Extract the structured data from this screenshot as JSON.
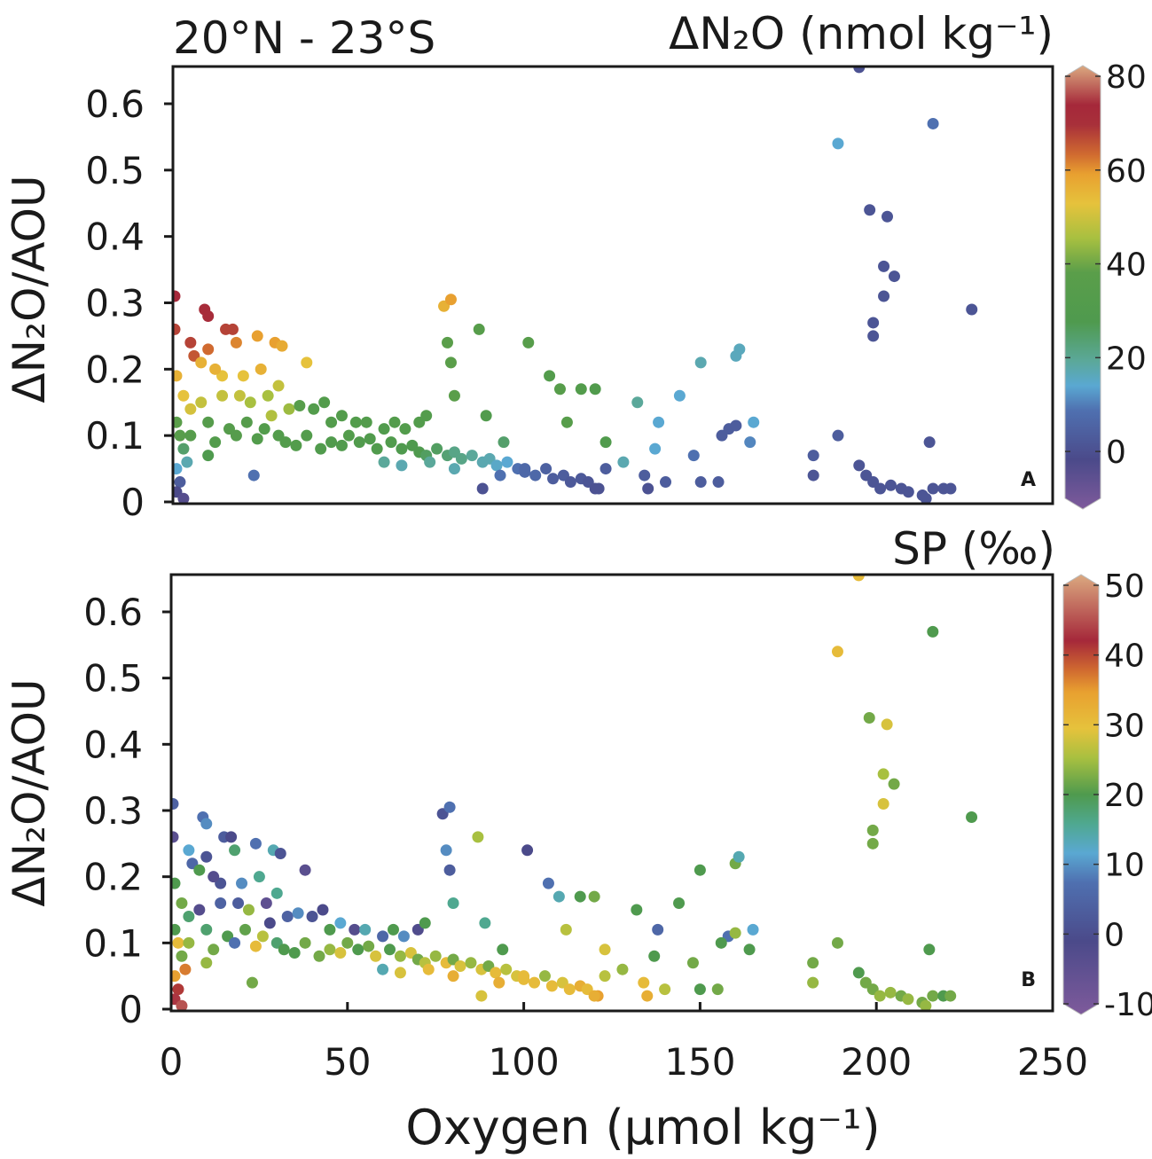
{
  "chart_data": [
    {
      "type": "scatter",
      "panel_letter": "A",
      "title": "20°N - 23°S",
      "colorbar_label": "ΔN₂O (nmol kg⁻¹)",
      "colorbar_ticks": [
        "80",
        "60",
        "40",
        "20",
        "0"
      ],
      "colorbar_tick_values": [
        80,
        60,
        40,
        20,
        0
      ],
      "colorbar_range": [
        -10,
        80
      ],
      "colorbar_stops": [
        [
          -10,
          "#7e5a9b"
        ],
        [
          0,
          "#4b4a8a"
        ],
        [
          10,
          "#4f70b0"
        ],
        [
          15,
          "#5aa8d2"
        ],
        [
          20,
          "#5ba89a"
        ],
        [
          28,
          "#4f9a4e"
        ],
        [
          38,
          "#5a9e4a"
        ],
        [
          45,
          "#a8c040"
        ],
        [
          52,
          "#e6c23c"
        ],
        [
          58,
          "#e8a030"
        ],
        [
          62,
          "#d06a30"
        ],
        [
          68,
          "#a8303a"
        ],
        [
          72,
          "#a5283a"
        ],
        [
          80,
          "#dba980"
        ]
      ],
      "color_field_index": 2,
      "ylabel": "ΔN₂O/AOU",
      "ylim": [
        0,
        0.66
      ],
      "yticks": [
        "0",
        "0.1",
        "0.2",
        "0.3",
        "0.4",
        "0.5",
        "0.6"
      ],
      "ytick_values": [
        0,
        0.1,
        0.2,
        0.3,
        0.4,
        0.5,
        0.6
      ],
      "xlim": [
        0,
        250
      ]
    },
    {
      "type": "scatter",
      "panel_letter": "B",
      "colorbar_label": "SP (‰)",
      "colorbar_ticks": [
        "50",
        "40",
        "30",
        "20",
        "10",
        "0",
        "-10"
      ],
      "colorbar_tick_values": [
        50,
        40,
        30,
        20,
        10,
        0,
        -10
      ],
      "colorbar_range": [
        -10,
        50
      ],
      "colorbar_stops": [
        [
          -10,
          "#7e5a9b"
        ],
        [
          0,
          "#4b4a8a"
        ],
        [
          8,
          "#4f70b0"
        ],
        [
          12,
          "#5aa8d2"
        ],
        [
          16,
          "#4fa890"
        ],
        [
          20,
          "#4f9a4e"
        ],
        [
          25,
          "#a8c040"
        ],
        [
          29,
          "#e6c23c"
        ],
        [
          34,
          "#e8a030"
        ],
        [
          37,
          "#d06a30"
        ],
        [
          41,
          "#a5283a"
        ],
        [
          50,
          "#dba980"
        ]
      ],
      "color_field_index": 3,
      "ylabel": "ΔN₂O/AOU",
      "ylim": [
        0,
        0.66
      ],
      "yticks": [
        "0",
        "0.1",
        "0.2",
        "0.3",
        "0.4",
        "0.5",
        "0.6"
      ],
      "ytick_values": [
        0,
        0.1,
        0.2,
        0.3,
        0.4,
        0.5,
        0.6
      ],
      "xlim": [
        0,
        250
      ],
      "xlabel": "Oxygen (μmol kg⁻¹)",
      "xticks": [
        "0",
        "50",
        "100",
        "150",
        "200",
        "250"
      ],
      "xtick_values": [
        0,
        50,
        100,
        150,
        200,
        250
      ]
    }
  ],
  "point_fields": [
    "oxygen",
    "dN2O_AOU",
    "dN2O",
    "SP"
  ],
  "points": [
    [
      0.5,
      0.31,
      72,
      5
    ],
    [
      0.5,
      0.26,
      66,
      -3
    ],
    [
      5,
      0.24,
      66,
      12
    ],
    [
      6,
      0.22,
      64,
      6
    ],
    [
      9,
      0.29,
      70,
      8
    ],
    [
      10,
      0.28,
      70,
      10
    ],
    [
      10,
      0.23,
      62,
      2
    ],
    [
      15,
      0.26,
      66,
      4
    ],
    [
      17,
      0.26,
      66,
      0
    ],
    [
      18,
      0.24,
      60,
      18
    ],
    [
      24,
      0.25,
      58,
      8
    ],
    [
      29,
      0.24,
      58,
      14
    ],
    [
      31,
      0.235,
      56,
      2
    ],
    [
      38,
      0.21,
      52,
      -3
    ],
    [
      25,
      0.2,
      55,
      16
    ],
    [
      20,
      0.19,
      52,
      10
    ],
    [
      14,
      0.19,
      52,
      2
    ],
    [
      12,
      0.2,
      55,
      -2
    ],
    [
      8,
      0.21,
      55,
      20
    ],
    [
      1,
      0.19,
      55,
      20
    ],
    [
      3,
      0.16,
      52,
      22
    ],
    [
      5,
      0.14,
      50,
      18
    ],
    [
      8,
      0.15,
      48,
      -2
    ],
    [
      14,
      0.16,
      48,
      5
    ],
    [
      19,
      0.16,
      48,
      4
    ],
    [
      22,
      0.15,
      45,
      24
    ],
    [
      27,
      0.16,
      45,
      -4
    ],
    [
      30,
      0.175,
      48,
      16
    ],
    [
      28,
      0.13,
      46,
      0
    ],
    [
      33,
      0.14,
      44,
      5
    ],
    [
      36,
      0.145,
      35,
      10
    ],
    [
      40,
      0.14,
      32,
      2
    ],
    [
      43,
      0.15,
      32,
      0
    ],
    [
      45,
      0.12,
      32,
      20
    ],
    [
      48,
      0.13,
      32,
      12
    ],
    [
      52,
      0.12,
      32,
      -2
    ],
    [
      55,
      0.12,
      32,
      14
    ],
    [
      60,
      0.11,
      30,
      6
    ],
    [
      63,
      0.12,
      32,
      20
    ],
    [
      66,
      0.11,
      32,
      10
    ],
    [
      70,
      0.12,
      32,
      -1
    ],
    [
      72,
      0.13,
      32,
      20
    ],
    [
      1,
      0.12,
      38,
      20
    ],
    [
      2,
      0.1,
      36,
      30
    ],
    [
      3,
      0.08,
      25,
      22
    ],
    [
      4,
      0.06,
      18,
      36
    ],
    [
      1,
      0.05,
      15,
      34
    ],
    [
      2,
      0.03,
      5,
      40
    ],
    [
      1,
      0.015,
      0,
      42
    ],
    [
      3,
      0.005,
      -2,
      44
    ],
    [
      5,
      0.1,
      34,
      24
    ],
    [
      10,
      0.12,
      34,
      18
    ],
    [
      12,
      0.09,
      32,
      22
    ],
    [
      16,
      0.11,
      34,
      20
    ],
    [
      18,
      0.1,
      34,
      8
    ],
    [
      21,
      0.12,
      34,
      21
    ],
    [
      24,
      0.095,
      32,
      30
    ],
    [
      26,
      0.11,
      32,
      26
    ],
    [
      30,
      0.1,
      32,
      18
    ],
    [
      32,
      0.09,
      32,
      20
    ],
    [
      35,
      0.085,
      32,
      20
    ],
    [
      38,
      0.1,
      32,
      22
    ],
    [
      42,
      0.08,
      30,
      22
    ],
    [
      45,
      0.09,
      30,
      24
    ],
    [
      48,
      0.085,
      30,
      28
    ],
    [
      50,
      0.1,
      32,
      22
    ],
    [
      53,
      0.09,
      30,
      20
    ],
    [
      56,
      0.095,
      30,
      22
    ],
    [
      58,
      0.08,
      30,
      28
    ],
    [
      62,
      0.09,
      30,
      20
    ],
    [
      65,
      0.08,
      28,
      24
    ],
    [
      68,
      0.085,
      28,
      28
    ],
    [
      70,
      0.075,
      28,
      22
    ],
    [
      72,
      0.07,
      26,
      26
    ],
    [
      75,
      0.08,
      26,
      24
    ],
    [
      78,
      0.07,
      24,
      30
    ],
    [
      80,
      0.075,
      22,
      22
    ],
    [
      82,
      0.065,
      22,
      28
    ],
    [
      85,
      0.07,
      20,
      24
    ],
    [
      88,
      0.06,
      18,
      28
    ],
    [
      90,
      0.065,
      18,
      22
    ],
    [
      92,
      0.055,
      16,
      30
    ],
    [
      95,
      0.06,
      15,
      26
    ],
    [
      98,
      0.05,
      10,
      28
    ],
    [
      100,
      0.045,
      8,
      30
    ],
    [
      103,
      0.04,
      8,
      30
    ],
    [
      106,
      0.05,
      6,
      24
    ],
    [
      108,
      0.035,
      5,
      30
    ],
    [
      111,
      0.04,
      5,
      28
    ],
    [
      113,
      0.03,
      4,
      30
    ],
    [
      116,
      0.035,
      4,
      32
    ],
    [
      118,
      0.03,
      3,
      30
    ],
    [
      121,
      0.02,
      2,
      34
    ],
    [
      60,
      0.06,
      20,
      14
    ],
    [
      65,
      0.055,
      18,
      28
    ],
    [
      73,
      0.06,
      20,
      30
    ],
    [
      80,
      0.05,
      18,
      32
    ],
    [
      88,
      0.02,
      2,
      28
    ],
    [
      93,
      0.04,
      10,
      32
    ],
    [
      23,
      0.04,
      10,
      22
    ],
    [
      10,
      0.07,
      28,
      24
    ],
    [
      77,
      0.295,
      55,
      2
    ],
    [
      79,
      0.305,
      58,
      8
    ],
    [
      78,
      0.24,
      38,
      10
    ],
    [
      79,
      0.21,
      38,
      4
    ],
    [
      80,
      0.16,
      38,
      16
    ],
    [
      87,
      0.26,
      35,
      25
    ],
    [
      89,
      0.13,
      30,
      16
    ],
    [
      101,
      0.24,
      35,
      0
    ],
    [
      94,
      0.09,
      25,
      20
    ],
    [
      107,
      0.19,
      32,
      8
    ],
    [
      110,
      0.17,
      35,
      14
    ],
    [
      112,
      0.12,
      35,
      26
    ],
    [
      116,
      0.17,
      32,
      20
    ],
    [
      120,
      0.17,
      30,
      22
    ],
    [
      123,
      0.09,
      30,
      28
    ],
    [
      132,
      0.15,
      20,
      20
    ],
    [
      128,
      0.06,
      18,
      24
    ],
    [
      137,
      0.08,
      15,
      20
    ],
    [
      144,
      0.16,
      15,
      20
    ],
    [
      138,
      0.12,
      15,
      6
    ],
    [
      150,
      0.21,
      18,
      20
    ],
    [
      148,
      0.07,
      10,
      22
    ],
    [
      134,
      0.04,
      5,
      30
    ],
    [
      135,
      0.02,
      2,
      32
    ],
    [
      140,
      0.03,
      5,
      26
    ],
    [
      150,
      0.03,
      5,
      20
    ],
    [
      155,
      0.03,
      5,
      22
    ],
    [
      160,
      0.22,
      17,
      22
    ],
    [
      161,
      0.23,
      17,
      14
    ],
    [
      165,
      0.12,
      15,
      12
    ],
    [
      158,
      0.11,
      5,
      8
    ],
    [
      156,
      0.1,
      5,
      20
    ],
    [
      160,
      0.115,
      5,
      24
    ],
    [
      164,
      0.09,
      12,
      20
    ],
    [
      123,
      0.05,
      5,
      26
    ],
    [
      120,
      0.02,
      2,
      32
    ],
    [
      100,
      0.05,
      8,
      30
    ],
    [
      195,
      0.655,
      2,
      30
    ],
    [
      189,
      0.54,
      15,
      30
    ],
    [
      216,
      0.57,
      10,
      20
    ],
    [
      198,
      0.44,
      3,
      22
    ],
    [
      203,
      0.43,
      3,
      28
    ],
    [
      202,
      0.355,
      3,
      25
    ],
    [
      205,
      0.34,
      3,
      22
    ],
    [
      202,
      0.31,
      3,
      28
    ],
    [
      199,
      0.27,
      3,
      22
    ],
    [
      199,
      0.25,
      3,
      22
    ],
    [
      227,
      0.29,
      3,
      20
    ],
    [
      189,
      0.1,
      5,
      22
    ],
    [
      182,
      0.07,
      5,
      22
    ],
    [
      182,
      0.04,
      3,
      24
    ],
    [
      195,
      0.055,
      3,
      20
    ],
    [
      197,
      0.04,
      3,
      22
    ],
    [
      199,
      0.03,
      3,
      22
    ],
    [
      201,
      0.02,
      3,
      24
    ],
    [
      204,
      0.025,
      3,
      24
    ],
    [
      207,
      0.02,
      3,
      22
    ],
    [
      209,
      0.015,
      3,
      24
    ],
    [
      215,
      0.09,
      3,
      20
    ],
    [
      213,
      0.01,
      3,
      22
    ],
    [
      216,
      0.02,
      3,
      22
    ],
    [
      219,
      0.02,
      3,
      20
    ],
    [
      221,
      0.02,
      3,
      22
    ],
    [
      214,
      0.005,
      3,
      24
    ]
  ]
}
